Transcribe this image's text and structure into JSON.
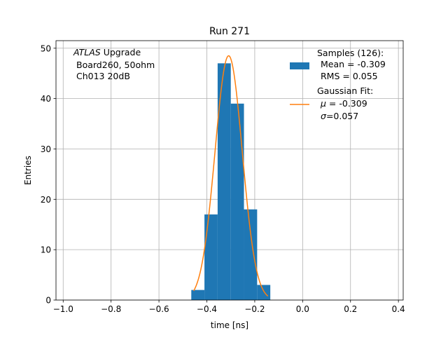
{
  "chart_data": {
    "type": "bar",
    "title": "Run 271",
    "xlabel": "time [ns]",
    "ylabel": "Entries",
    "xlim": [
      -1.03,
      0.42
    ],
    "ylim": [
      0,
      51.5
    ],
    "grid": true,
    "xticks": [
      -1.0,
      -0.8,
      -0.6,
      -0.4,
      -0.2,
      0.0,
      0.2,
      0.4
    ],
    "xtick_labels": [
      "−1.0",
      "−0.8",
      "−0.6",
      "−0.4",
      "−0.2",
      "0.0",
      "0.2",
      "0.4"
    ],
    "yticks": [
      0,
      10,
      20,
      30,
      40,
      50
    ],
    "ytick_labels": [
      "0",
      "10",
      "20",
      "30",
      "40",
      "50"
    ],
    "histogram": {
      "color": "#1f77b4",
      "bins": [
        {
          "x0": -0.465,
          "x1": -0.41,
          "count": 2
        },
        {
          "x0": -0.41,
          "x1": -0.355,
          "count": 17
        },
        {
          "x0": -0.355,
          "x1": -0.3,
          "count": 47
        },
        {
          "x0": -0.3,
          "x1": -0.245,
          "count": 39
        },
        {
          "x0": -0.245,
          "x1": -0.19,
          "count": 18
        },
        {
          "x0": -0.19,
          "x1": -0.135,
          "count": 3
        }
      ]
    },
    "fit": {
      "type": "gaussian",
      "color": "#ff7f0e",
      "mu": -0.309,
      "sigma": 0.057,
      "amplitude": 48.5,
      "x_range": [
        -0.455,
        -0.145
      ]
    },
    "annotation": {
      "italic": "ATLAS",
      "rest": " Upgrade",
      "line2": "Board260, 50ohm",
      "line3": "Ch013 20dB"
    },
    "legend": {
      "placement": "top-right",
      "samples": {
        "title": "Samples (126):",
        "mean": "Mean = -0.309",
        "rms": "RMS = 0.055"
      },
      "fit": {
        "title": "Gaussian Fit:",
        "mu_symbol": "μ",
        "mu_value": " = -0.309",
        "sigma_symbol": "σ",
        "sigma_value": "=0.057"
      }
    }
  }
}
